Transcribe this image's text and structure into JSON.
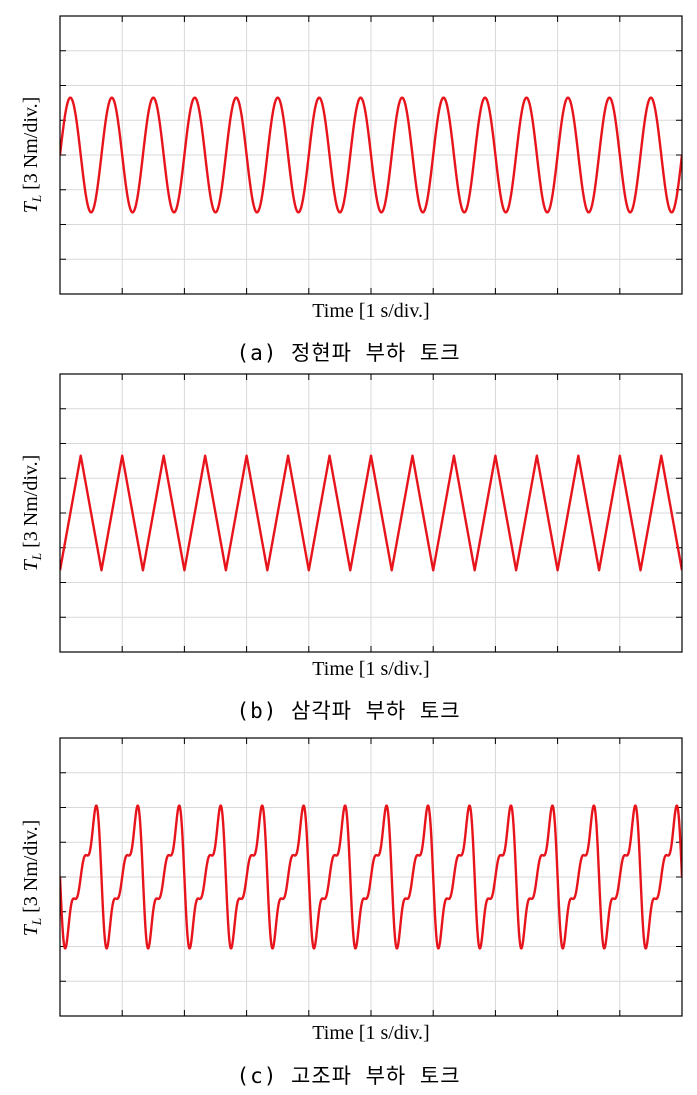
{
  "chart_data": [
    {
      "type": "line",
      "panel": "a",
      "ylabel": {
        "symbol": "T",
        "subscript": "L",
        "unit": " [3 Nm/div.]"
      },
      "xlabel": "Time [1 s/div.]",
      "caption": "(a) 정현파 부하 토크",
      "x_divisions": 10,
      "y_divisions": 8,
      "xlim": [
        0,
        10
      ],
      "ylim": [
        -4,
        4
      ],
      "grid": true,
      "color": "#e8141c",
      "series": [
        {
          "waveform": "sine",
          "cycles": 15,
          "amplitude_div": 1.65,
          "offset_div": 0.0,
          "phase_deg": 0
        }
      ]
    },
    {
      "type": "line",
      "panel": "b",
      "ylabel": {
        "symbol": "T",
        "subscript": "L",
        "unit": " [3 Nm/div.]"
      },
      "xlabel": "Time [1 s/div.]",
      "caption": "(b) 삼각파 부하 토크",
      "x_divisions": 10,
      "y_divisions": 8,
      "xlim": [
        0,
        10
      ],
      "ylim": [
        -4,
        4
      ],
      "grid": true,
      "color": "#e8141c",
      "series": [
        {
          "waveform": "triangle",
          "cycles": 15,
          "amplitude_div": 1.65,
          "offset_div": 0.0,
          "phase_deg": 0
        }
      ]
    },
    {
      "type": "line",
      "panel": "c",
      "ylabel": {
        "symbol": "T",
        "subscript": "L",
        "unit": " [3 Nm/div.]"
      },
      "xlabel": "Time [1 s/div.]",
      "caption": "(c) 고조파 부하 토크",
      "x_divisions": 10,
      "y_divisions": 8,
      "xlim": [
        0,
        10
      ],
      "ylim": [
        -4,
        4
      ],
      "grid": true,
      "color": "#e8141c",
      "series": [
        {
          "waveform": "harmonic",
          "cycles": 15,
          "harmonic_orders": [
            1,
            2,
            3
          ],
          "harmonic_weights": [
            1.0,
            0.5,
            0.333
          ],
          "amplitude_div": 2.35,
          "offset_div": 0.0,
          "phase_deg": 0
        }
      ]
    }
  ],
  "panels": [
    {
      "id": "a",
      "ylabel_unit": " [3 Nm/div.]",
      "xlabel": "Time [1 s/div.]",
      "caption": "(a) 정현파 부하 토크"
    },
    {
      "id": "b",
      "ylabel_unit": " [3 Nm/div.]",
      "xlabel": "Time [1 s/div.]",
      "caption": "(b) 삼각파 부하 토크"
    },
    {
      "id": "c",
      "ylabel_unit": " [3 Nm/div.]",
      "xlabel": "Time [1 s/div.]",
      "caption": "(c) 고조파 부하 토크"
    }
  ],
  "ylabel_symbol": "T",
  "ylabel_subscript": "L",
  "colors": {
    "trace": "#e8141c",
    "grid": "#d9d9d9",
    "frame": "#000000",
    "background": "#ffffff"
  }
}
